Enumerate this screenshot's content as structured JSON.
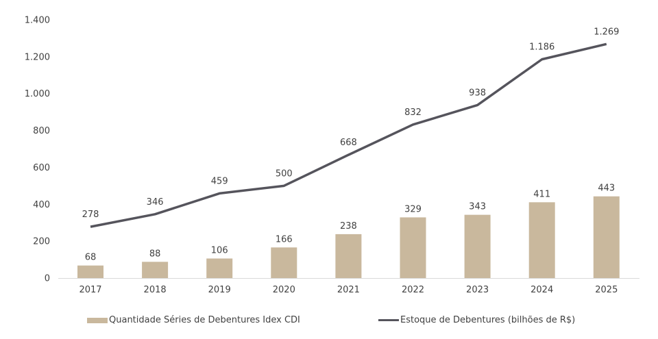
{
  "chart_data": {
    "type": "bar",
    "title": "",
    "xlabel": "",
    "ylabel": "",
    "ylim": [
      0,
      1400
    ],
    "yticks": [
      0,
      200,
      400,
      600,
      800,
      1000,
      1200,
      1400
    ],
    "ytick_labels": [
      "0",
      "200",
      "400",
      "600",
      "800",
      "1.000",
      "1.200",
      "1.400"
    ],
    "grid": false,
    "legend_position": "bottom",
    "categories": [
      "2017",
      "2018",
      "2019",
      "2020",
      "2021",
      "2022",
      "2023",
      "2024",
      "2025"
    ],
    "series": [
      {
        "name": "Quantidade Séries de Debentures Idex CDI",
        "type": "bar",
        "color": "#C9B89D",
        "values": [
          68,
          88,
          106,
          166,
          238,
          329,
          343,
          411,
          443
        ],
        "labels": [
          "68",
          "88",
          "106",
          "166",
          "238",
          "329",
          "343",
          "411",
          "443"
        ]
      },
      {
        "name": "Estoque de Debentures (bilhões de R$)",
        "type": "line",
        "color": "#55545C",
        "values": [
          278,
          346,
          459,
          500,
          668,
          832,
          938,
          1186,
          1269
        ],
        "labels": [
          "278",
          "346",
          "459",
          "500",
          "668",
          "832",
          "938",
          "1.186",
          "1.269"
        ]
      }
    ]
  }
}
